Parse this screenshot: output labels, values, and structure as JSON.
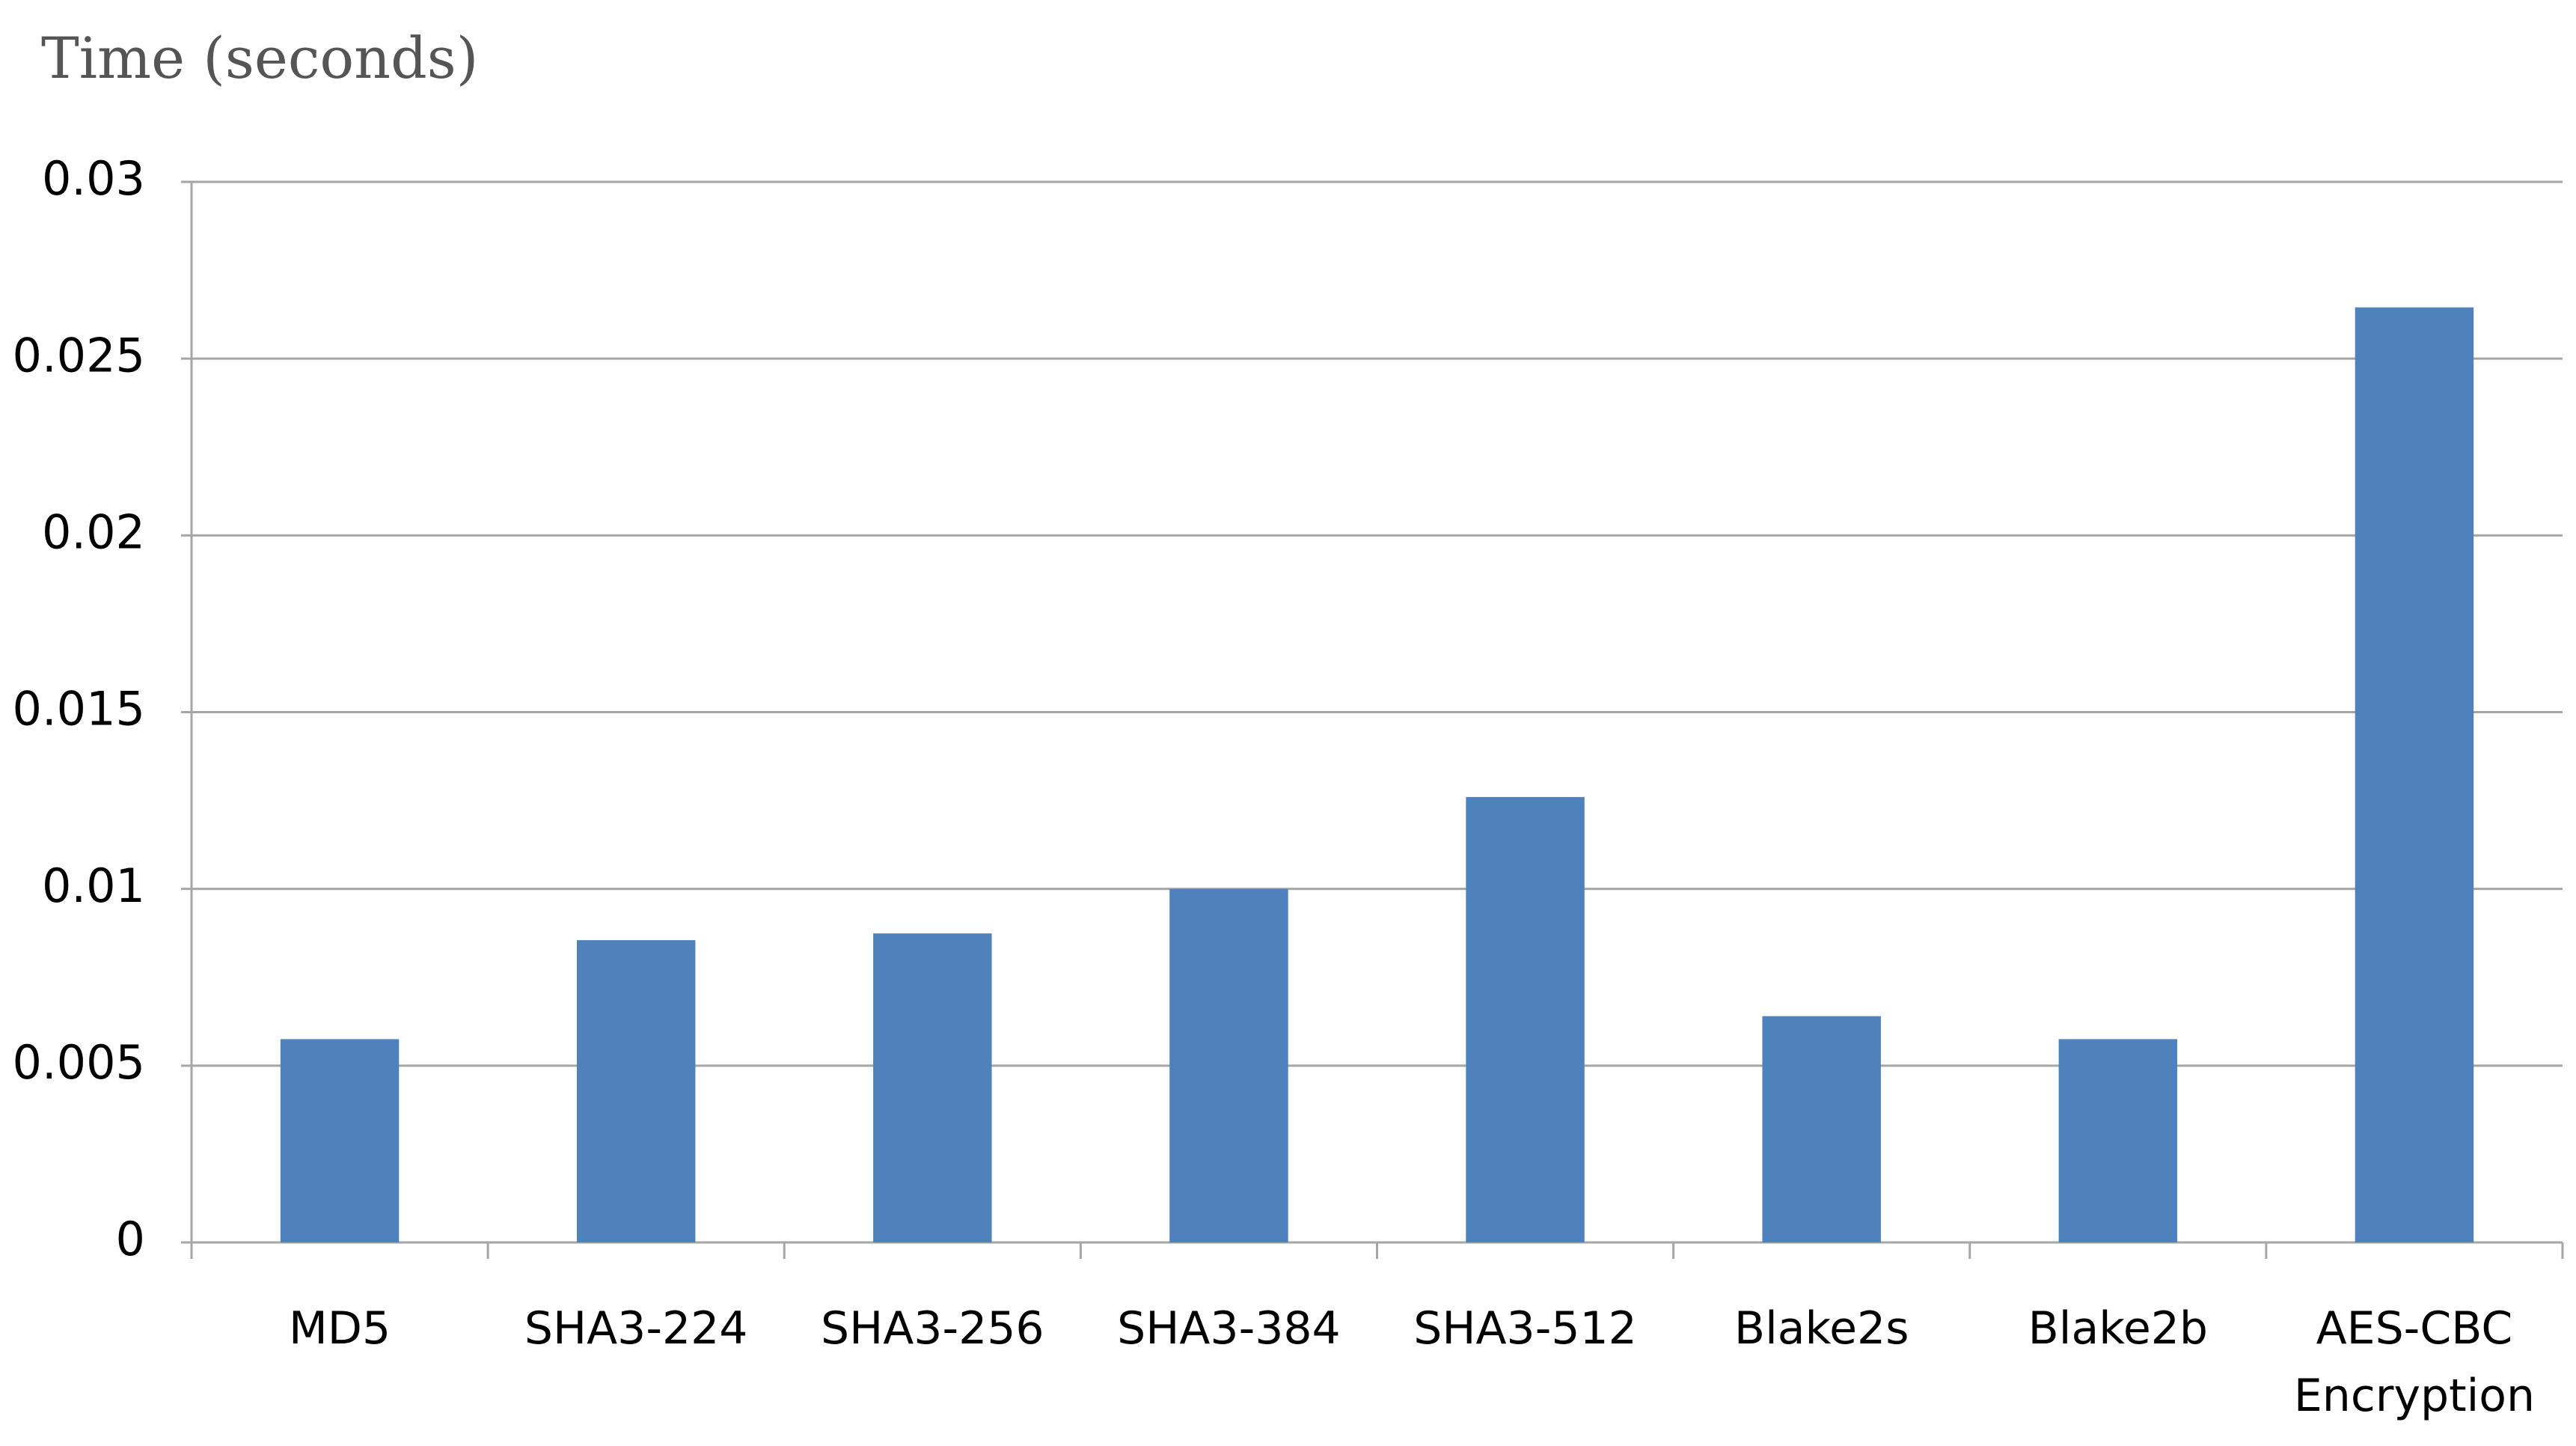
{
  "chart_data": {
    "type": "bar",
    "title": "Time (seconds)",
    "categories": [
      "MD5",
      "SHA3-224",
      "SHA3-256",
      "SHA3-384",
      "SHA3-512",
      "Blake2s",
      "Blake2b",
      "AES-CBC Encryption"
    ],
    "values": [
      0.00575,
      0.00855,
      0.00874,
      0.01,
      0.0126,
      0.0064,
      0.00575,
      0.02645
    ],
    "color": "#4f81bd",
    "ylim": [
      0,
      0.03
    ],
    "yticks": [
      0,
      0.005,
      0.01,
      0.015,
      0.02,
      0.025,
      0.03
    ],
    "grid": true
  }
}
